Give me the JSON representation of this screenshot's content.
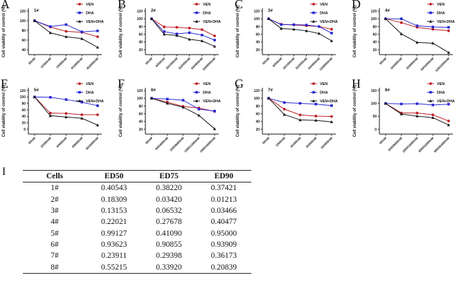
{
  "figure": {
    "table_section_letter": "I"
  },
  "chart_data": [
    {
      "type": "line",
      "panel_letter": "A",
      "sample_label": "1#",
      "ylabel": "Cell viability of control (%)",
      "ylim": [
        40,
        120
      ],
      "yticks": [
        40,
        60,
        80,
        100,
        120
      ],
      "categories": [
        "0/0nM",
        "1/2500nM",
        "2/5000nM",
        "4/10000nM",
        "8/20000nM"
      ],
      "legend_position": "top-right",
      "series": [
        {
          "name": "VEN",
          "color": "#bf1e24",
          "marker": "circle",
          "values": [
            100,
            87,
            78,
            76,
            67
          ]
        },
        {
          "name": "DHA",
          "color": "#2727d3",
          "marker": "square",
          "values": [
            100,
            88,
            92,
            77,
            79
          ]
        },
        {
          "name": "VEN+DHA",
          "color": "#151515",
          "marker": "triangle",
          "values": [
            100,
            75,
            67,
            63,
            45
          ]
        }
      ]
    },
    {
      "type": "line",
      "panel_letter": "B",
      "sample_label": "2#",
      "ylabel": "Cell viability of control (%)",
      "ylim": [
        20,
        120
      ],
      "yticks": [
        20,
        40,
        60,
        80,
        100,
        120
      ],
      "categories": [
        "0/0nM",
        "8/500nM",
        "16/1000nM",
        "32/2000nM",
        "64/4000nM",
        "128/8000nM"
      ],
      "legend_position": "top-right",
      "series": [
        {
          "name": "VEN",
          "color": "#bf1e24",
          "marker": "circle",
          "values": [
            100,
            79,
            78,
            76,
            72,
            56
          ]
        },
        {
          "name": "DHA",
          "color": "#2727d3",
          "marker": "square",
          "values": [
            100,
            67,
            61,
            64,
            58,
            45
          ]
        },
        {
          "name": "VEN+DHA",
          "color": "#151515",
          "marker": "triangle",
          "values": [
            100,
            60,
            57,
            47,
            43,
            29
          ]
        }
      ]
    },
    {
      "type": "line",
      "panel_letter": "C",
      "sample_label": "3#",
      "ylabel": "Cell viability of control (%)",
      "ylim": [
        20,
        120
      ],
      "yticks": [
        20,
        40,
        60,
        80,
        100,
        120
      ],
      "categories": [
        "0/0nM",
        "8/500nM",
        "16/1000nM",
        "32/2000nM",
        "64/4000nM",
        "128/8000nM"
      ],
      "legend_position": "top-right",
      "series": [
        {
          "name": "VEN",
          "color": "#bf1e24",
          "marker": "circle",
          "values": [
            100,
            86,
            84,
            82,
            80,
            73
          ]
        },
        {
          "name": "DHA",
          "color": "#2727d3",
          "marker": "square",
          "values": [
            100,
            85,
            85,
            84,
            80,
            63
          ]
        },
        {
          "name": "VEN+DHA",
          "color": "#151515",
          "marker": "triangle",
          "values": [
            100,
            75,
            73,
            69,
            62,
            43
          ]
        }
      ]
    },
    {
      "type": "line",
      "panel_letter": "D",
      "sample_label": "4#",
      "ylabel": "Cell viability of control (%)",
      "ylim": [
        20,
        120
      ],
      "yticks": [
        20,
        40,
        60,
        80,
        100,
        120
      ],
      "categories": [
        "0/0nM",
        "16/4000nM",
        "32/8000nM",
        "64/16000nM",
        "128/32000nM"
      ],
      "legend_position": "top-right",
      "series": [
        {
          "name": "VEN",
          "color": "#bf1e24",
          "marker": "circle",
          "values": [
            100,
            90,
            78,
            73,
            69
          ]
        },
        {
          "name": "DHA",
          "color": "#2727d3",
          "marker": "square",
          "values": [
            100,
            100,
            82,
            79,
            78
          ]
        },
        {
          "name": "VEN+DHA",
          "color": "#151515",
          "marker": "triangle",
          "values": [
            100,
            61,
            39,
            37,
            13
          ]
        }
      ]
    },
    {
      "type": "line",
      "panel_letter": "E",
      "sample_label": "5#",
      "ylabel": "Cell viability of control (%)",
      "ylim": [
        0,
        120
      ],
      "yticks": [
        0,
        20,
        40,
        60,
        80,
        100,
        120
      ],
      "categories": [
        "0/0nM",
        "2/2000nM",
        "4/4000nM",
        "8/8000nM",
        "16/16000nM"
      ],
      "legend_position": "top-right",
      "series": [
        {
          "name": "VEN",
          "color": "#bf1e24",
          "marker": "circle",
          "values": [
            100,
            50,
            49,
            45,
            45
          ]
        },
        {
          "name": "DHA",
          "color": "#2727d3",
          "marker": "square",
          "values": [
            100,
            99,
            92,
            84,
            73
          ]
        },
        {
          "name": "VEN+DHA",
          "color": "#151515",
          "marker": "triangle",
          "values": [
            100,
            42,
            38,
            34,
            13
          ]
        }
      ]
    },
    {
      "type": "line",
      "panel_letter": "F",
      "sample_label": "6#",
      "ylabel": "Cell viability of control (%)",
      "ylim": [
        20,
        120
      ],
      "yticks": [
        20,
        40,
        60,
        80,
        100,
        120
      ],
      "categories": [
        "0/0nM",
        "500/4000nM",
        "1000/8000nM",
        "1500/12000nM",
        "2000/16000nM"
      ],
      "legend_position": "top-right",
      "series": [
        {
          "name": "VEN",
          "color": "#bf1e24",
          "marker": "circle",
          "values": [
            100,
            90,
            79,
            75,
            66
          ]
        },
        {
          "name": "DHA",
          "color": "#2727d3",
          "marker": "square",
          "values": [
            100,
            98,
            95,
            72,
            67
          ]
        },
        {
          "name": "VEN+DHA",
          "color": "#151515",
          "marker": "triangle",
          "values": [
            100,
            87,
            77,
            56,
            21
          ]
        }
      ]
    },
    {
      "type": "line",
      "panel_letter": "G",
      "sample_label": "7#",
      "ylabel": "Cell viability of control (%)",
      "ylim": [
        20,
        120
      ],
      "yticks": [
        20,
        40,
        60,
        80,
        100,
        120
      ],
      "categories": [
        "0/0nM",
        "2/500nM",
        "4/1000nM",
        "8/2000nM",
        "16/4000nM"
      ],
      "legend_position": "top-right",
      "series": [
        {
          "name": "VEN",
          "color": "#bf1e24",
          "marker": "circle",
          "values": [
            100,
            72,
            57,
            54,
            53
          ]
        },
        {
          "name": "DHA",
          "color": "#2727d3",
          "marker": "square",
          "values": [
            100,
            89,
            87,
            85,
            81
          ]
        },
        {
          "name": "VEN+DHA",
          "color": "#151515",
          "marker": "triangle",
          "values": [
            100,
            58,
            44,
            43,
            39
          ]
        }
      ]
    },
    {
      "type": "line",
      "panel_letter": "H",
      "sample_label": "8#",
      "ylabel": "Cell viability of control (%)",
      "ylim": [
        0,
        150
      ],
      "yticks": [
        0,
        50,
        100,
        150
      ],
      "categories": [
        "0/0nM",
        "1000/8000nM",
        "2000/16000nM",
        "4000/32000nM",
        "8000/64000nM"
      ],
      "legend_position": "top-right",
      "series": [
        {
          "name": "VEN",
          "color": "#bf1e24",
          "marker": "circle",
          "values": [
            100,
            63,
            63,
            56,
            32
          ]
        },
        {
          "name": "DHA",
          "color": "#2727d3",
          "marker": "square",
          "values": [
            100,
            98,
            99,
            94,
            97
          ]
        },
        {
          "name": "VEN+DHA",
          "color": "#151515",
          "marker": "triangle",
          "values": [
            100,
            59,
            51,
            45,
            17
          ]
        }
      ]
    }
  ],
  "table": {
    "headers": [
      "Cells",
      "ED50",
      "ED75",
      "ED90"
    ],
    "rows": [
      [
        "1#",
        "0.40543",
        "0.38220",
        "0.37421"
      ],
      [
        "2#",
        "0.18309",
        "0.03420",
        "0.01213"
      ],
      [
        "3#",
        "0.13153",
        "0.06532",
        "0.03466"
      ],
      [
        "4#",
        "0.22021",
        "0.27678",
        "0.40477"
      ],
      [
        "5#",
        "0.99127",
        "0.41090",
        "0.95000"
      ],
      [
        "6#",
        "0.93623",
        "0.90855",
        "0.93909"
      ],
      [
        "7#",
        "0.23911",
        "0.29398",
        "0.36173"
      ],
      [
        "8#",
        "0.55215",
        "0.33920",
        "0.20839"
      ]
    ]
  }
}
